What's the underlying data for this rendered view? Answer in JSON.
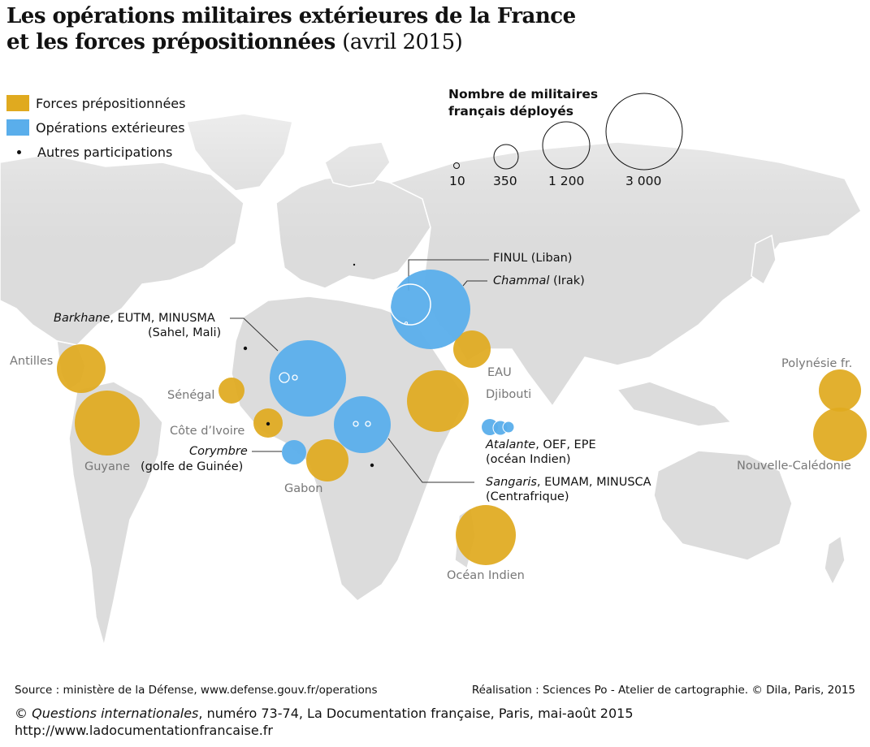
{
  "title": {
    "line1": "Les opérations militaires extérieures de la France",
    "line2_bold": "et les forces prépositionnées",
    "line2_date": "(avril 2015)"
  },
  "legend": {
    "items": [
      {
        "label": "Forces prépositionnées",
        "color": "#e0aa1f",
        "kind": "swatch"
      },
      {
        "label": "Opérations extérieures",
        "color": "#5aaeeb",
        "kind": "swatch"
      },
      {
        "label": "Autres participations",
        "color": "#111111",
        "kind": "dot"
      }
    ],
    "size_title_1": "Nombre de militaires",
    "size_title_2": "français déployés",
    "sizes": [
      "10",
      "350",
      "1 200",
      "3 000"
    ]
  },
  "colors": {
    "prepositioned": "#e0aa1f",
    "operations": "#5aaeeb",
    "land": "#dcdcdc",
    "ocean": "#ffffff"
  },
  "labels": {
    "antilles": "Antilles",
    "guyane": "Guyane",
    "senegal": "Sénégal",
    "cote_ivoire": "Côte d’Ivoire",
    "corymbre_name": "Corymbre",
    "corymbre_region": "(golfe de Guinée)",
    "gabon": "Gabon",
    "barkhane_name": "Barkhane",
    "barkhane_rest": ", EUTM, MINUSMA",
    "barkhane_region": "(Sahel, Mali)",
    "finul": "FINUL (Liban)",
    "chammal_name": "Chammal",
    "chammal_region": "(Irak)",
    "eau": "EAU",
    "djibouti": "Djibouti",
    "atalante_name": "Atalante",
    "atalante_rest": ", OEF, EPE",
    "atalante_region": "(océan Indien)",
    "sangaris_name": "Sangaris",
    "sangaris_rest": ", EUMAM, MINUSCA",
    "sangaris_region": "(Centrafrique)",
    "ocean_indien": "Océan Indien",
    "polynesie": "Polynésie fr.",
    "nouvelle_caledonie": "Nouvelle-Calédonie"
  },
  "footer": {
    "source": "Source : ministère de la Défense, www.defense.gouv.fr/operations",
    "credit": "Réalisation : Sciences Po - Atelier de cartographie. © Dila, Paris, 2015",
    "copyright_prefix": "© ",
    "copyright_italic": "Questions internationales",
    "copyright_rest": ", numéro 73-74, La Documentation française, Paris, mai-août 2015",
    "url": "http://www.ladocumentationfrancaise.fr"
  }
}
